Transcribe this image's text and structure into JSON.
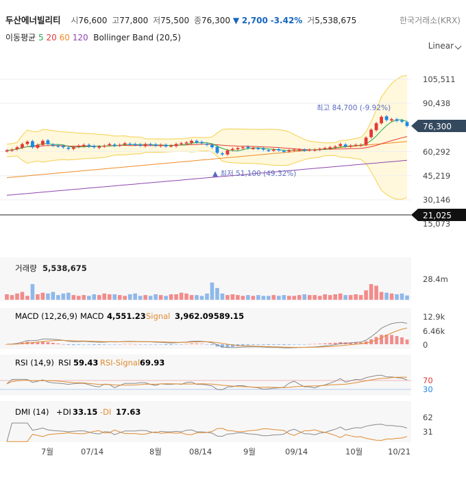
{
  "header": {
    "stock_name": "두산에너빌리티",
    "open_label": "시",
    "open": "76,600",
    "high_label": "고",
    "high": "77,800",
    "low_label": "저",
    "low": "75,500",
    "close_label": "종",
    "close": "76,300",
    "change_arrow": "▼",
    "change": "2,700",
    "change_pct": "-3.42%",
    "volume_label": "거",
    "volume": "5,538,675",
    "exchange": "한국거래소(KRX)"
  },
  "ma_legend": {
    "label": "이동평균",
    "periods": [
      {
        "text": "5",
        "color": "#2aa84a"
      },
      {
        "text": "20",
        "color": "#e53935"
      },
      {
        "text": "60",
        "color": "#f08a24"
      },
      {
        "text": "120",
        "color": "#8e44ad"
      }
    ],
    "bollinger": "Bollinger Band (20,5)"
  },
  "scale_mode": "Linear",
  "colors": {
    "up": "#e53935",
    "down": "#1e88e5",
    "bb_fill": "#fff8dc",
    "bb_line": "#f5cf4a",
    "ma5": "#2aa84a",
    "ma20": "#e53935",
    "ma60": "#f08a24",
    "ma120": "#8e44ad",
    "macd": "#888888",
    "signal": "#e08a30"
  },
  "chart_data": [
    {
      "type": "candlestick",
      "y_ticks": [
        "105,511",
        "90,438",
        "76,300",
        "60,292",
        "45,219",
        "30,146",
        "21,025",
        "15,073"
      ],
      "ylim": [
        12000,
        118000
      ],
      "current_price": "76,300",
      "reference_line": "21,025",
      "high_note": "최고 84,700 (-9.92%)",
      "low_note": "▲ 최저 51,100 (49.32%)",
      "closes": [
        61000,
        61500,
        63000,
        65000,
        66500,
        63000,
        64500,
        67000,
        65000,
        64000,
        63500,
        63000,
        62000,
        63000,
        64000,
        64500,
        63500,
        63000,
        63500,
        64000,
        65000,
        64000,
        64500,
        65500,
        65000,
        64500,
        64000,
        65000,
        64500,
        64000,
        64500,
        63500,
        64000,
        65000,
        65500,
        66000,
        67000,
        66000,
        65500,
        64500,
        63000,
        59500,
        58500,
        61000,
        62000,
        62500,
        63000,
        62500,
        62500,
        62000,
        61500,
        61000,
        61500,
        61000,
        60500,
        61000,
        61500,
        61500,
        61000,
        61500,
        61500,
        62000,
        62500,
        63000,
        63500,
        65000,
        63500,
        64000,
        64500,
        64500,
        69000,
        74000,
        78000,
        82000,
        80000,
        80500,
        79500,
        79000,
        76300
      ]
    },
    {
      "type": "bar",
      "name_label": "거래량",
      "value_label": "5,538,675",
      "y_ticks": [
        "28.4m"
      ],
      "values": [
        7,
        6,
        8,
        10,
        5,
        20,
        7,
        9,
        8,
        10,
        6,
        8,
        9,
        6,
        5,
        6,
        5,
        7,
        6,
        8,
        7,
        7,
        6,
        5,
        7,
        8,
        5,
        6,
        5,
        7,
        6,
        5,
        7,
        7,
        9,
        8,
        6,
        6,
        5,
        8,
        22,
        15,
        8,
        6,
        7,
        6,
        5,
        6,
        5,
        6,
        5,
        5,
        6,
        5,
        6,
        5,
        5,
        6,
        7,
        6,
        6,
        5,
        7,
        6,
        7,
        8,
        6,
        6,
        7,
        6,
        12,
        20,
        18,
        10,
        9,
        8,
        7,
        8,
        5.5
      ]
    },
    {
      "type": "line",
      "title": "MACD (12,26,9)",
      "series": [
        {
          "name": "MACD",
          "value_label": "4,551.23"
        },
        {
          "name": "Signal",
          "value_label": "3,962.09589.15"
        }
      ],
      "y_ticks": [
        "12.9k",
        "6.46k",
        "0"
      ]
    },
    {
      "type": "line",
      "title": "RSI (14,9)",
      "series": [
        {
          "name": "RSI",
          "value_label": "59.43"
        },
        {
          "name": "RSI-Signal",
          "value_label": "69.93"
        }
      ],
      "y_ticks": [
        "70",
        "30"
      ]
    },
    {
      "type": "line",
      "title": "DMI (14)",
      "series": [
        {
          "name": "+DI",
          "value_label": "33.15"
        },
        {
          "name": "-DI",
          "value_label": "17.63"
        }
      ],
      "y_ticks": [
        "62",
        "31"
      ]
    }
  ],
  "x_labels": [
    "7월",
    "07/14",
    "8월",
    "08/14",
    "9월",
    "09/14",
    "10월",
    "10/21"
  ]
}
